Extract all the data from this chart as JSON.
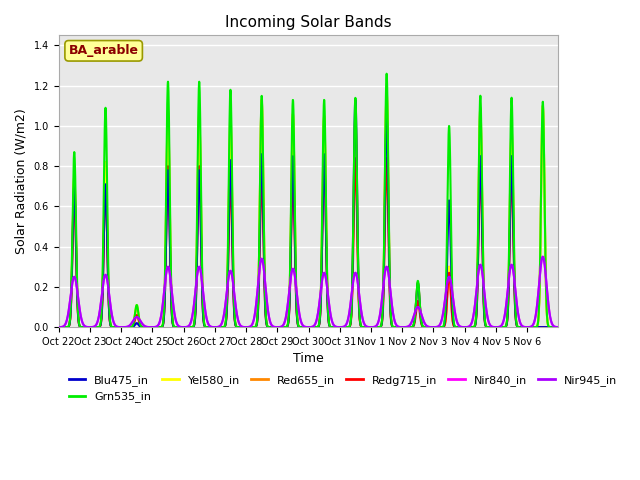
{
  "title": "Incoming Solar Bands",
  "xlabel": "Time",
  "ylabel": "Solar Radiation (W/m2)",
  "ylim": [
    0,
    1.45
  ],
  "yticks": [
    0.0,
    0.2,
    0.4,
    0.6,
    0.8,
    1.0,
    1.2,
    1.4
  ],
  "annotation_text": "BA_arable",
  "annotation_color": "#8B0000",
  "annotation_bg": "#FFFF99",
  "annotation_edge": "#999900",
  "background_color": "#E8E8E8",
  "fig_bg": "#FFFFFF",
  "grid_color": "white",
  "lines": {
    "Blu475_in": {
      "color": "#0000CC",
      "lw": 1.5,
      "zorder": 5
    },
    "Grn535_in": {
      "color": "#00EE00",
      "lw": 1.5,
      "zorder": 6
    },
    "Yel580_in": {
      "color": "#FFFF00",
      "lw": 1.5,
      "zorder": 4
    },
    "Red655_in": {
      "color": "#FF8800",
      "lw": 1.5,
      "zorder": 3
    },
    "Redg715_in": {
      "color": "#FF0000",
      "lw": 1.5,
      "zorder": 4
    },
    "Nir840_in": {
      "color": "#FF00FF",
      "lw": 1.5,
      "zorder": 7
    },
    "Nir945_in": {
      "color": "#AA00FF",
      "lw": 1.5,
      "zorder": 8
    }
  },
  "legend_order": [
    "Blu475_in",
    "Grn535_in",
    "Yel580_in",
    "Red655_in",
    "Redg715_in",
    "Nir840_in",
    "Nir945_in"
  ],
  "xtick_labels": [
    "Oct 22",
    "Oct 23",
    "Oct 24",
    "Oct 25",
    "Oct 26",
    "Oct 27",
    "Oct 28",
    "Oct 29",
    "Oct 30",
    "Oct 31",
    "Nov 1",
    "Nov 2",
    "Nov 3",
    "Nov 4",
    "Nov 5",
    "Nov 6"
  ],
  "day_peaks": {
    "Blu475_in": [
      0.7,
      0.71,
      0.02,
      0.78,
      0.78,
      0.83,
      0.86,
      0.85,
      0.86,
      1.13,
      1.05,
      0.22,
      0.63,
      0.85,
      0.85,
      0.0
    ],
    "Grn535_in": [
      0.87,
      1.09,
      0.11,
      1.22,
      1.22,
      1.18,
      1.15,
      1.13,
      1.13,
      1.14,
      1.26,
      0.23,
      1.0,
      1.15,
      1.14,
      1.12
    ],
    "Yel580_in": [
      0.75,
      0.82,
      0.11,
      1.05,
      1.06,
      1.05,
      1.13,
      1.06,
      1.05,
      1.05,
      1.18,
      0.22,
      0.3,
      1.09,
      0.99,
      1.1
    ],
    "Red655_in": [
      0.75,
      0.82,
      0.1,
      1.08,
      1.06,
      1.05,
      1.13,
      1.06,
      1.05,
      1.05,
      1.18,
      0.22,
      0.3,
      1.09,
      0.99,
      1.1
    ],
    "Redg715_in": [
      0.65,
      0.7,
      0.06,
      0.8,
      0.8,
      0.73,
      0.76,
      0.76,
      0.84,
      0.84,
      0.84,
      0.13,
      0.27,
      0.78,
      0.78,
      0.0
    ],
    "Nir840_in": [
      0.25,
      0.26,
      0.05,
      0.3,
      0.3,
      0.28,
      0.34,
      0.29,
      0.27,
      0.27,
      0.3,
      0.1,
      0.25,
      0.31,
      0.31,
      0.35
    ],
    "Nir945_in": [
      0.25,
      0.26,
      0.05,
      0.3,
      0.3,
      0.28,
      0.34,
      0.29,
      0.27,
      0.27,
      0.3,
      0.1,
      0.25,
      0.31,
      0.31,
      0.35
    ]
  },
  "peak_widths": {
    "Blu475_in": 0.055,
    "Grn535_in": 0.055,
    "Yel580_in": 0.055,
    "Red655_in": 0.055,
    "Redg715_in": 0.055,
    "Nir840_in": 0.12,
    "Nir945_in": 0.12
  },
  "figsize": [
    6.4,
    4.8
  ],
  "dpi": 100,
  "title_fontsize": 11,
  "axis_label_fontsize": 9,
  "tick_fontsize": 7,
  "legend_fontsize": 8
}
